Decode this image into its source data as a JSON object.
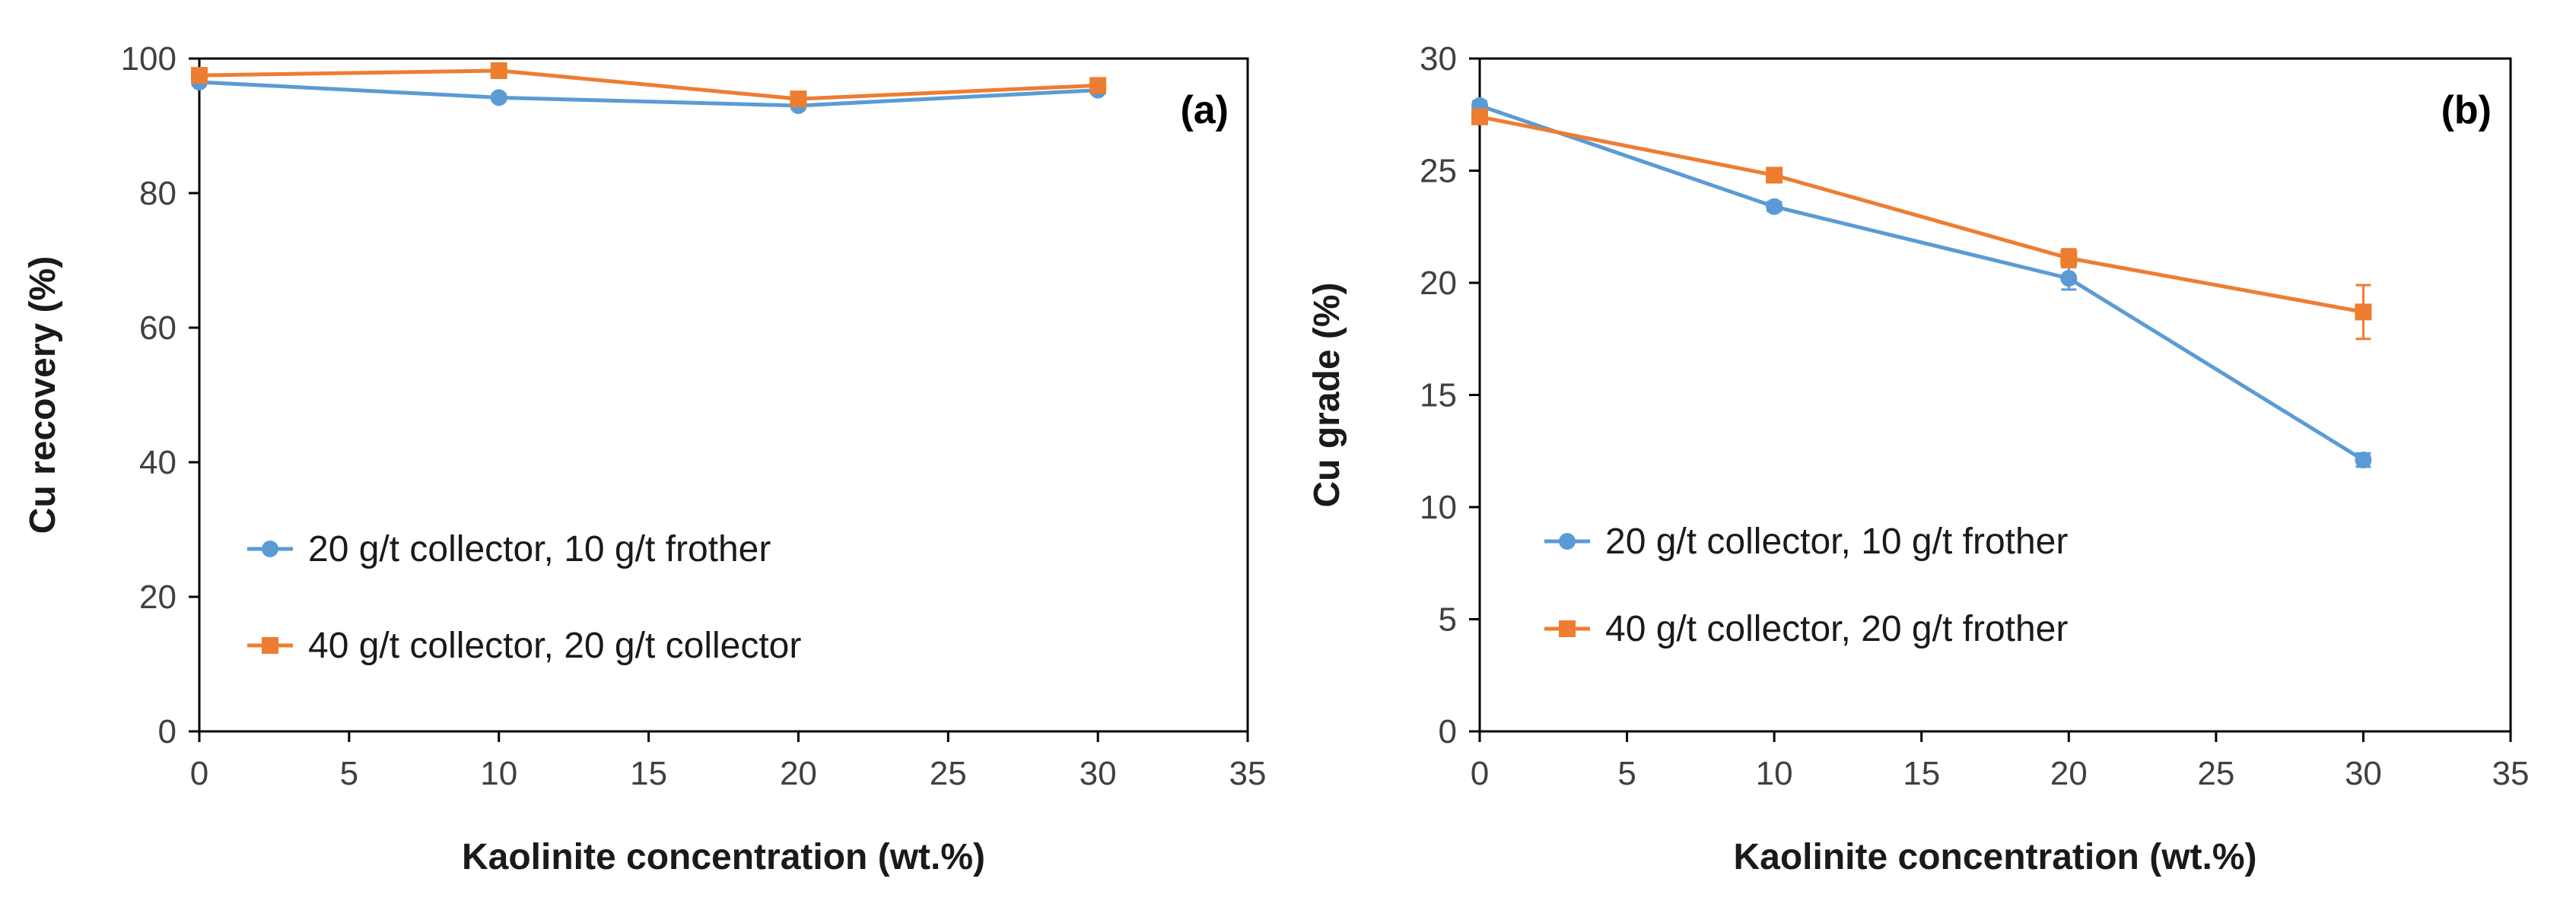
{
  "colors": {
    "blue": "#5b9bd5",
    "orange": "#ed7d31",
    "axis": "#000000",
    "text": "#404040"
  },
  "chart_data": [
    {
      "type": "line",
      "panel_label": "(a)",
      "xlabel": "Kaolinite concentration (wt.%)",
      "ylabel": "Cu recovery (%)",
      "xlim": [
        0,
        35
      ],
      "ylim": [
        0,
        100
      ],
      "xticks": [
        0,
        5,
        10,
        15,
        20,
        25,
        30,
        35
      ],
      "yticks": [
        0,
        20,
        40,
        60,
        80,
        100
      ],
      "grid": false,
      "legend_position": "lower-left",
      "series": [
        {
          "name": "20 g/t collector, 10 g/t frother",
          "color": "#5b9bd5",
          "marker": "circle",
          "x": [
            0,
            10,
            20,
            30
          ],
          "y": [
            96.5,
            94.2,
            93.0,
            95.3
          ],
          "error": [
            0.5,
            0.5,
            0.5,
            0.5
          ]
        },
        {
          "name": "40 g/t collector, 20 g/t collector",
          "color": "#ed7d31",
          "marker": "square",
          "x": [
            0,
            10,
            20,
            30
          ],
          "y": [
            97.5,
            98.2,
            94.0,
            96.0
          ],
          "error": [
            0.5,
            0.5,
            0.5,
            0.5
          ]
        }
      ]
    },
    {
      "type": "line",
      "panel_label": "(b)",
      "xlabel": "Kaolinite concentration (wt.%)",
      "ylabel": "Cu grade (%)",
      "xlim": [
        0,
        35
      ],
      "ylim": [
        0,
        30
      ],
      "xticks": [
        0,
        5,
        10,
        15,
        20,
        25,
        30,
        35
      ],
      "yticks": [
        0,
        5,
        10,
        15,
        20,
        25,
        30
      ],
      "grid": false,
      "legend_position": "lower-left",
      "series": [
        {
          "name": "20 g/t collector, 10 g/t frother",
          "color": "#5b9bd5",
          "marker": "circle",
          "x": [
            0,
            10,
            20,
            30
          ],
          "y": [
            27.9,
            23.4,
            20.2,
            12.1
          ],
          "error": [
            0.2,
            0.2,
            0.5,
            0.3
          ]
        },
        {
          "name": "40 g/t collector, 20 g/t frother",
          "color": "#ed7d31",
          "marker": "square",
          "x": [
            0,
            10,
            20,
            30
          ],
          "y": [
            27.4,
            24.8,
            21.1,
            18.7
          ],
          "error": [
            0.2,
            0.2,
            0.4,
            1.2
          ]
        }
      ]
    }
  ]
}
